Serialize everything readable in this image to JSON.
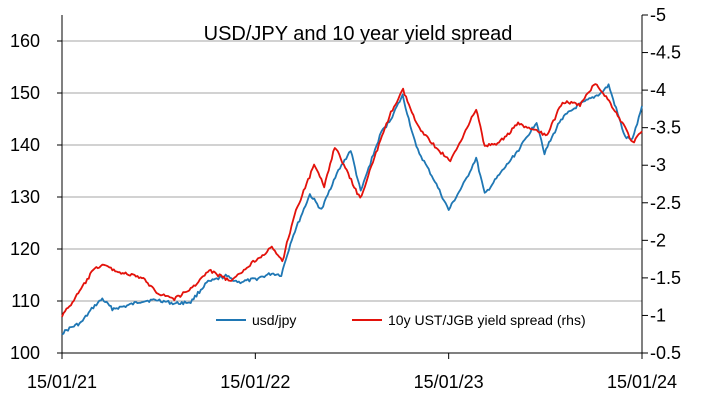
{
  "chart_data": {
    "type": "line",
    "title": "USD/JPY and 10 year yield spread",
    "x_tick_labels": [
      "15/01/21",
      "15/01/22",
      "15/01/23",
      "15/01/24"
    ],
    "x_range": [
      "2021-01-15",
      "2024-01-15"
    ],
    "y_left": {
      "ticks": [
        "100",
        "110",
        "120",
        "130",
        "140",
        "150",
        "160"
      ],
      "ylim": [
        100,
        165
      ]
    },
    "y_right": {
      "ticks": [
        "-0.5",
        "-1",
        "-1.5",
        "-2",
        "-2.5",
        "-3",
        "-3.5",
        "-4",
        "-4.5",
        "-5"
      ],
      "ylim": [
        -0.5,
        -5
      ],
      "inverted": true
    },
    "grid": "horizontal",
    "legend_position": "bottom-center",
    "series": [
      {
        "name": "usd/jpy",
        "axis": "left",
        "color": "#1f77b4",
        "points": [
          [
            "2021-01-15",
            103.8
          ],
          [
            "2021-02-01",
            104.9
          ],
          [
            "2021-02-20",
            105.8
          ],
          [
            "2021-03-15",
            108.8
          ],
          [
            "2021-04-01",
            110.4
          ],
          [
            "2021-04-20",
            108.5
          ],
          [
            "2021-05-15",
            109.0
          ],
          [
            "2021-06-15",
            110.0
          ],
          [
            "2021-07-15",
            110.2
          ],
          [
            "2021-08-15",
            109.5
          ],
          [
            "2021-09-15",
            109.8
          ],
          [
            "2021-10-15",
            113.5
          ],
          [
            "2021-11-20",
            114.8
          ],
          [
            "2021-12-15",
            113.6
          ],
          [
            "2022-01-15",
            114.2
          ],
          [
            "2022-02-15",
            115.3
          ],
          [
            "2022-03-05",
            115.0
          ],
          [
            "2022-03-25",
            122.0
          ],
          [
            "2022-04-28",
            130.5
          ],
          [
            "2022-05-20",
            127.5
          ],
          [
            "2022-06-15",
            134.0
          ],
          [
            "2022-07-14",
            139.0
          ],
          [
            "2022-08-02",
            131.0
          ],
          [
            "2022-08-20",
            136.5
          ],
          [
            "2022-09-10",
            142.5
          ],
          [
            "2022-09-25",
            144.5
          ],
          [
            "2022-10-20",
            149.5
          ],
          [
            "2022-11-15",
            139.5
          ],
          [
            "2022-12-20",
            133.0
          ],
          [
            "2023-01-15",
            127.5
          ],
          [
            "2023-02-15",
            133.0
          ],
          [
            "2023-03-08",
            137.5
          ],
          [
            "2023-03-24",
            130.5
          ],
          [
            "2023-04-15",
            133.5
          ],
          [
            "2023-05-30",
            139.5
          ],
          [
            "2023-06-30",
            144.5
          ],
          [
            "2023-07-15",
            138.5
          ],
          [
            "2023-08-15",
            145.0
          ],
          [
            "2023-09-15",
            147.5
          ],
          [
            "2023-10-30",
            150.0
          ],
          [
            "2023-11-13",
            151.5
          ],
          [
            "2023-12-14",
            141.5
          ],
          [
            "2023-12-28",
            141.0
          ],
          [
            "2024-01-15",
            147.5
          ]
        ]
      },
      {
        "name": "10y UST/JGB yield spread (rhs)",
        "axis": "right",
        "color": "#e3120b",
        "points": [
          [
            "2021-01-15",
            -1.0
          ],
          [
            "2021-02-01",
            -1.15
          ],
          [
            "2021-02-20",
            -1.35
          ],
          [
            "2021-03-15",
            -1.6
          ],
          [
            "2021-04-01",
            -1.68
          ],
          [
            "2021-05-01",
            -1.58
          ],
          [
            "2021-06-15",
            -1.5
          ],
          [
            "2021-07-15",
            -1.3
          ],
          [
            "2021-08-15",
            -1.22
          ],
          [
            "2021-09-15",
            -1.35
          ],
          [
            "2021-10-20",
            -1.6
          ],
          [
            "2021-12-01",
            -1.45
          ],
          [
            "2022-01-05",
            -1.68
          ],
          [
            "2022-02-15",
            -1.9
          ],
          [
            "2022-03-07",
            -1.72
          ],
          [
            "2022-03-30",
            -2.35
          ],
          [
            "2022-05-06",
            -3.0
          ],
          [
            "2022-05-25",
            -2.72
          ],
          [
            "2022-06-14",
            -3.25
          ],
          [
            "2022-08-01",
            -2.55
          ],
          [
            "2022-08-25",
            -3.05
          ],
          [
            "2022-09-28",
            -3.7
          ],
          [
            "2022-10-21",
            -4.0
          ],
          [
            "2022-11-15",
            -3.55
          ],
          [
            "2022-12-20",
            -3.25
          ],
          [
            "2023-01-18",
            -3.05
          ],
          [
            "2023-03-08",
            -3.75
          ],
          [
            "2023-03-24",
            -3.25
          ],
          [
            "2023-04-20",
            -3.3
          ],
          [
            "2023-05-26",
            -3.55
          ],
          [
            "2023-06-30",
            -3.45
          ],
          [
            "2023-07-20",
            -3.4
          ],
          [
            "2023-08-18",
            -3.85
          ],
          [
            "2023-09-20",
            -3.8
          ],
          [
            "2023-10-19",
            -4.1
          ],
          [
            "2023-11-14",
            -3.85
          ],
          [
            "2023-12-14",
            -3.5
          ],
          [
            "2023-12-28",
            -3.3
          ],
          [
            "2024-01-15",
            -3.45
          ]
        ]
      }
    ]
  }
}
